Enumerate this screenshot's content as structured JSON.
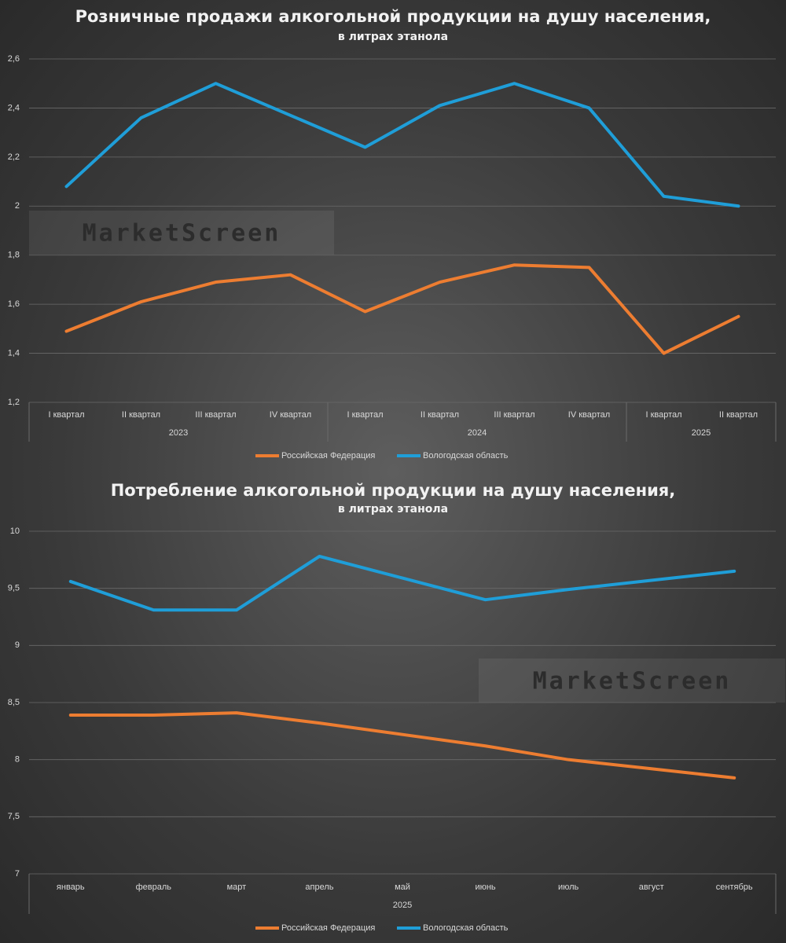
{
  "chart_data": [
    {
      "type": "line",
      "title": "Розничные продажи алкогольной продукции на душу населения,",
      "subtitle": "в литрах этанола",
      "watermark": "MarketScreen",
      "categories": [
        "I квартал",
        "II квартал",
        "III квартал",
        "IV квартал",
        "I квартал",
        "II квартал",
        "III квартал",
        "IV квартал",
        "I квартал",
        "II квартал"
      ],
      "group_labels": [
        "2023",
        "2024",
        "2025"
      ],
      "group_sizes": [
        4,
        4,
        2
      ],
      "ylim": [
        1.2,
        2.6
      ],
      "yticks": [
        {
          "value": 1.2,
          "label": "1,2"
        },
        {
          "value": 1.4,
          "label": "1,4"
        },
        {
          "value": 1.6,
          "label": "1,6"
        },
        {
          "value": 1.8,
          "label": "1,8"
        },
        2,
        {
          "value": 2.2,
          "label": "2,2"
        },
        {
          "value": 2.4,
          "label": "2,4"
        },
        {
          "value": 2.6,
          "label": "2,6"
        }
      ],
      "grid": true,
      "legend": "bottom",
      "series": [
        {
          "name": "Российская Федерация",
          "color": "#ed7d31",
          "values": [
            1.49,
            1.61,
            1.69,
            1.72,
            1.57,
            1.69,
            1.76,
            1.75,
            1.4,
            1.55
          ]
        },
        {
          "name": "Вологодская область",
          "color": "#1f9ed8",
          "values": [
            2.08,
            2.36,
            2.5,
            2.37,
            2.24,
            2.41,
            2.5,
            2.4,
            2.04,
            2.0
          ]
        }
      ]
    },
    {
      "type": "line",
      "title": "Потребление алкогольной продукции на душу населения,",
      "subtitle": "в литрах этанола",
      "watermark": "MarketScreen",
      "categories": [
        "январь",
        "февраль",
        "март",
        "апрель",
        "май",
        "июнь",
        "июль",
        "август",
        "сентябрь"
      ],
      "group_labels": [
        "2025"
      ],
      "group_sizes": [
        9
      ],
      "ylim": [
        7,
        10
      ],
      "yticks": [
        7,
        {
          "value": 7.5,
          "label": "7,5"
        },
        8,
        {
          "value": 8.5,
          "label": "8,5"
        },
        9,
        {
          "value": 9.5,
          "label": "9,5"
        },
        10
      ],
      "grid": true,
      "legend": "bottom",
      "series": [
        {
          "name": "Российская Федерация",
          "color": "#ed7d31",
          "values": [
            8.39,
            8.39,
            8.41,
            8.32,
            8.22,
            8.12,
            8.0,
            7.92,
            7.84
          ]
        },
        {
          "name": "Вологодская область",
          "color": "#1f9ed8",
          "values": [
            9.56,
            9.31,
            9.31,
            9.78,
            9.59,
            9.4,
            9.49,
            9.57,
            9.65
          ]
        }
      ]
    }
  ]
}
